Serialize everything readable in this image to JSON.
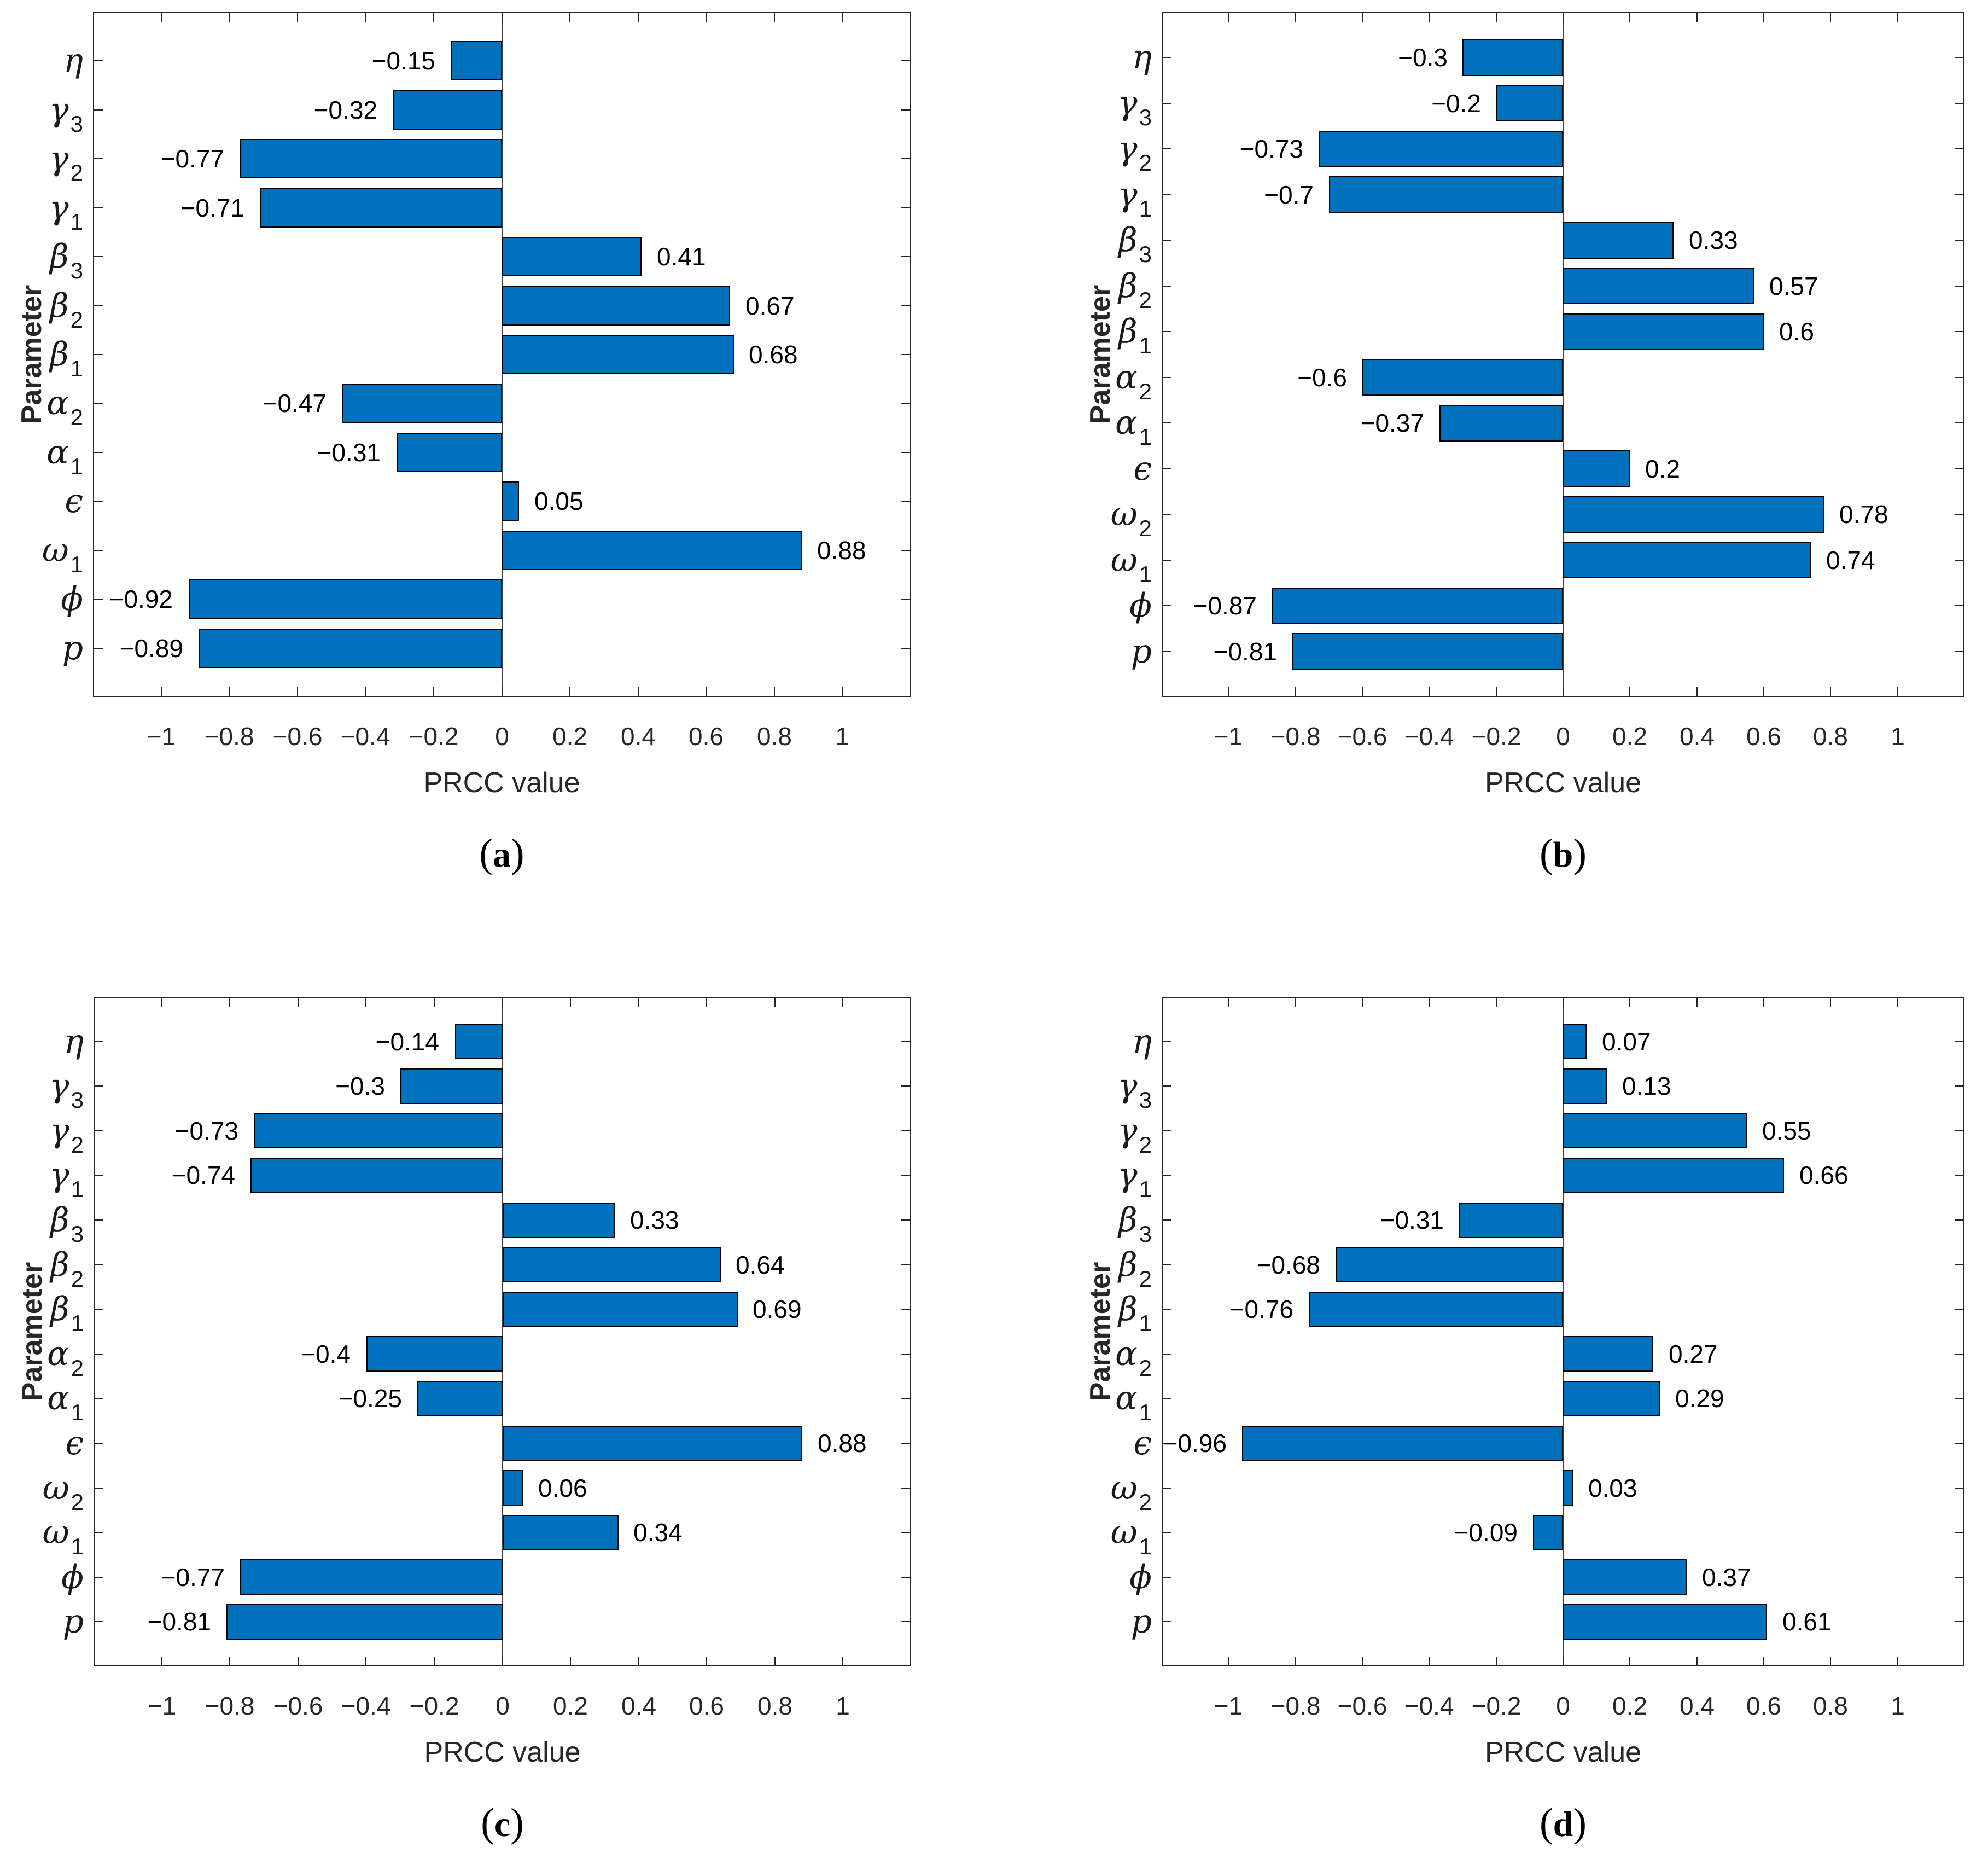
{
  "figure": {
    "background": "#ffffff",
    "description": "Four-panel PRCC sensitivity analysis horizontal bar charts"
  },
  "colors": {
    "bar_fill": "#0072BD",
    "bar_edge": "#000000",
    "axis": "#262626",
    "tick_label": "#262626",
    "value_label": "#000000"
  },
  "chart_data": [
    {
      "type": "bar",
      "orientation": "horizontal",
      "panel": "a",
      "caption": "(a)",
      "caption_letter": "a",
      "xlabel": "PRCC value",
      "ylabel": "Parameter",
      "xlim": [
        -1.2,
        1.2
      ],
      "grid": false,
      "xticks": [
        -1,
        -0.8,
        -0.6,
        -0.4,
        -0.2,
        0,
        0.2,
        0.4,
        0.6,
        0.8,
        1
      ],
      "xtick_labels": [
        "−1",
        "−0.8",
        "−0.6",
        "−0.4",
        "−0.2",
        "0",
        "0.2",
        "0.4",
        "0.6",
        "0.8",
        "1"
      ],
      "categories_bottom_to_top": [
        "p",
        "ϕ",
        "ω_1",
        "ϵ",
        "α_1",
        "α_2",
        "β_1",
        "β_2",
        "β_3",
        "γ_1",
        "γ_2",
        "γ_3",
        "η"
      ],
      "values": [
        -0.89,
        -0.92,
        0.88,
        0.05,
        -0.31,
        -0.47,
        0.68,
        0.67,
        0.41,
        -0.71,
        -0.77,
        -0.32,
        -0.15
      ],
      "value_labels": [
        "−0.89",
        "−0.92",
        "0.88",
        "0.05",
        "−0.31",
        "−0.47",
        "0.68",
        "0.67",
        "0.41",
        "−0.71",
        "−0.77",
        "−0.32",
        "−0.15"
      ]
    },
    {
      "type": "bar",
      "orientation": "horizontal",
      "panel": "b",
      "caption": "(b)",
      "caption_letter": "b",
      "xlabel": "PRCC value",
      "ylabel": "Parameter",
      "xlim": [
        -1.2,
        1.2
      ],
      "grid": false,
      "xticks": [
        -1,
        -0.8,
        -0.6,
        -0.4,
        -0.2,
        0,
        0.2,
        0.4,
        0.6,
        0.8,
        1
      ],
      "xtick_labels": [
        "−1",
        "−0.8",
        "−0.6",
        "−0.4",
        "−0.2",
        "0",
        "0.2",
        "0.4",
        "0.6",
        "0.8",
        "1"
      ],
      "categories_bottom_to_top": [
        "p",
        "ϕ",
        "ω_1",
        "ω_2",
        "ϵ",
        "α_1",
        "α_2",
        "β_1",
        "β_2",
        "β_3",
        "γ_1",
        "γ_2",
        "γ_3",
        "η"
      ],
      "values": [
        -0.81,
        -0.87,
        0.74,
        0.78,
        0.2,
        -0.37,
        -0.6,
        0.6,
        0.57,
        0.33,
        -0.7,
        -0.73,
        -0.2,
        -0.3
      ],
      "value_labels": [
        "−0.81",
        "−0.87",
        "0.74",
        "0.78",
        "0.2",
        "−0.37",
        "−0.6",
        "0.6",
        "0.57",
        "0.33",
        "−0.7",
        "−0.73",
        "−0.2",
        "−0.3"
      ]
    },
    {
      "type": "bar",
      "orientation": "horizontal",
      "panel": "c",
      "caption": "(c)",
      "caption_letter": "c",
      "xlabel": "PRCC value",
      "ylabel": "Parameter",
      "xlim": [
        -1.2,
        1.2
      ],
      "grid": false,
      "xticks": [
        -1,
        -0.8,
        -0.6,
        -0.4,
        -0.2,
        0,
        0.2,
        0.4,
        0.6,
        0.8,
        1
      ],
      "xtick_labels": [
        "−1",
        "−0.8",
        "−0.6",
        "−0.4",
        "−0.2",
        "0",
        "0.2",
        "0.4",
        "0.6",
        "0.8",
        "1"
      ],
      "categories_bottom_to_top": [
        "p",
        "ϕ",
        "ω_1",
        "ω_2",
        "ϵ",
        "α_1",
        "α_2",
        "β_1",
        "β_2",
        "β_3",
        "γ_1",
        "γ_2",
        "γ_3",
        "η"
      ],
      "values": [
        -0.81,
        -0.77,
        0.34,
        0.06,
        0.88,
        -0.25,
        -0.4,
        0.69,
        0.64,
        0.33,
        -0.74,
        -0.73,
        -0.3,
        -0.14
      ],
      "value_labels": [
        "−0.81",
        "−0.77",
        "0.34",
        "0.06",
        "0.88",
        "−0.25",
        "−0.4",
        "0.69",
        "0.64",
        "0.33",
        "−0.74",
        "−0.73",
        "−0.3",
        "−0.14"
      ]
    },
    {
      "type": "bar",
      "orientation": "horizontal",
      "panel": "d",
      "caption": "(d)",
      "caption_letter": "d",
      "xlabel": "PRCC value",
      "ylabel": "Parameter",
      "xlim": [
        -1.2,
        1.2
      ],
      "grid": false,
      "xticks": [
        -1,
        -0.8,
        -0.6,
        -0.4,
        -0.2,
        0,
        0.2,
        0.4,
        0.6,
        0.8,
        1
      ],
      "xtick_labels": [
        "−1",
        "−0.8",
        "−0.6",
        "−0.4",
        "−0.2",
        "0",
        "0.2",
        "0.4",
        "0.6",
        "0.8",
        "1"
      ],
      "categories_bottom_to_top": [
        "p",
        "ϕ",
        "ω_1",
        "ω_2",
        "ϵ",
        "α_1",
        "α_2",
        "β_1",
        "β_2",
        "β_3",
        "γ_1",
        "γ_2",
        "γ_3",
        "η"
      ],
      "values": [
        0.61,
        0.37,
        -0.09,
        0.03,
        -0.96,
        0.29,
        0.27,
        -0.76,
        -0.68,
        -0.31,
        0.66,
        0.55,
        0.13,
        0.07
      ],
      "value_labels": [
        "0.61",
        "0.37",
        "−0.09",
        "0.03",
        "−0.96",
        "0.29",
        "0.27",
        "−0.76",
        "−0.68",
        "−0.31",
        "0.66",
        "0.55",
        "0.13",
        "0.07"
      ]
    }
  ]
}
